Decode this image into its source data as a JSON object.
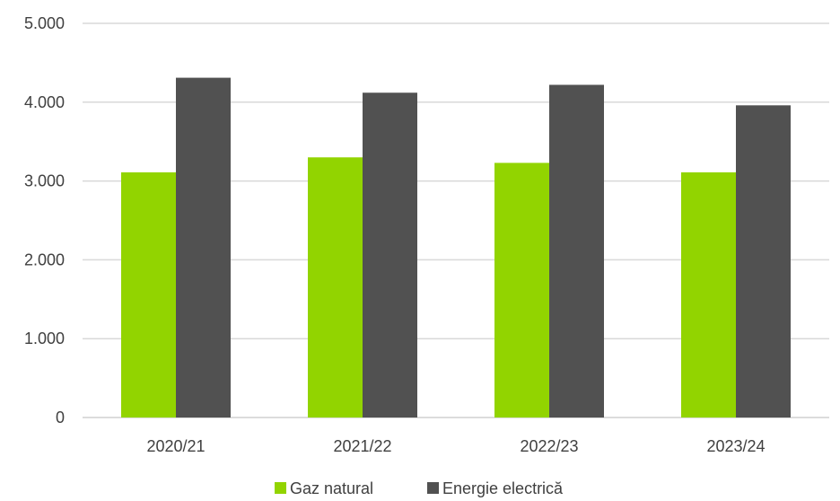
{
  "chart_data": {
    "type": "bar",
    "categories": [
      "2020/21",
      "2021/22",
      "2022/23",
      "2023/24"
    ],
    "series": [
      {
        "name": "Gaz natural",
        "values": [
          3110,
          3300,
          3230,
          3110
        ],
        "color": "#92d400"
      },
      {
        "name": "Energie electrică",
        "values": [
          4310,
          4120,
          4220,
          3960
        ],
        "color": "#515151"
      }
    ],
    "yticks": [
      "0",
      "1.000",
      "2.000",
      "3.000",
      "4.000",
      "5.000"
    ],
    "ylim": [
      0,
      5000
    ],
    "grid": true,
    "legend_position": "bottom"
  }
}
